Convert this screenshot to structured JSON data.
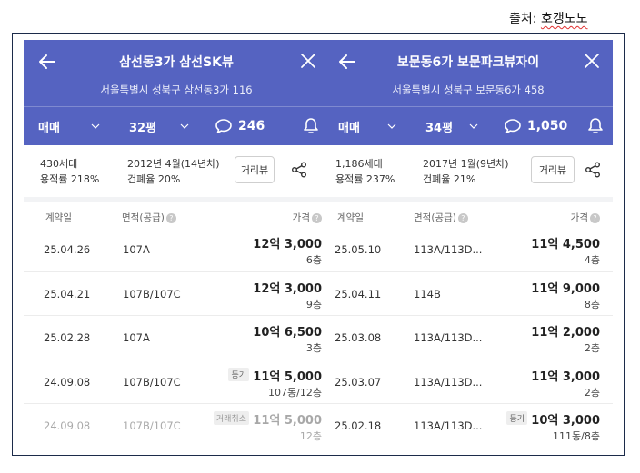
{
  "source": {
    "prefix": "출처: ",
    "name": "호갱노노"
  },
  "panels": [
    {
      "title": "삼선동3가 삼선SK뷰",
      "address": "서울특별시 성북구 삼선동3가 116",
      "tabs": {
        "type": "매매",
        "size": "32평",
        "comments": "246"
      },
      "summary": {
        "households": "430세대",
        "far": "용적률 218%",
        "built": "2012년 4월(14년차)",
        "bcr": "건폐율 20%",
        "distance_button": "거리뷰"
      },
      "columns": {
        "date": "계약일",
        "area": "면적(공급)",
        "price": "가격"
      },
      "rows": [
        {
          "date": "25.04.26",
          "area": "107A",
          "price": "12억 3,000",
          "floor": "6층",
          "badge": ""
        },
        {
          "date": "25.04.21",
          "area": "107B/107C",
          "price": "12억 3,000",
          "floor": "9층",
          "badge": ""
        },
        {
          "date": "25.02.28",
          "area": "107A",
          "price": "10억 6,500",
          "floor": "3층",
          "badge": ""
        },
        {
          "date": "24.09.08",
          "area": "107B/107C",
          "price": "11억 5,000",
          "floor": "107동/12층",
          "badge": "등기"
        },
        {
          "date": "24.09.08",
          "area": "107B/107C",
          "price": "11억 5,000",
          "floor": "12층",
          "badge": "거래취소"
        }
      ]
    },
    {
      "title": "보문동6가 보문파크뷰자이",
      "address": "서울특별시 성북구 보문동6가 458",
      "tabs": {
        "type": "매매",
        "size": "34평",
        "comments": "1,050"
      },
      "summary": {
        "households": "1,186세대",
        "far": "용적률 237%",
        "built": "2017년 1월(9년차)",
        "bcr": "건폐율 21%",
        "distance_button": "거리뷰"
      },
      "columns": {
        "date": "계약일",
        "area": "면적(공급)",
        "price": "가격"
      },
      "rows": [
        {
          "date": "25.05.10",
          "area": "113A/113D...",
          "price": "11억 4,500",
          "floor": "4층",
          "badge": ""
        },
        {
          "date": "25.04.11",
          "area": "114B",
          "price": "11억 9,000",
          "floor": "8층",
          "badge": ""
        },
        {
          "date": "25.03.08",
          "area": "113A/113D...",
          "price": "11억 2,000",
          "floor": "2층",
          "badge": ""
        },
        {
          "date": "25.03.07",
          "area": "113A/113D...",
          "price": "11억 3,000",
          "floor": "2층",
          "badge": ""
        },
        {
          "date": "25.02.18",
          "area": "113A/113D...",
          "price": "10억 3,000",
          "floor": "111동/8층",
          "badge": "등기"
        }
      ]
    }
  ],
  "colors": {
    "header": "#5563c1",
    "frame": "#1c2b4a"
  },
  "icons": [
    "back-arrow-icon",
    "close-icon",
    "chevron-down-icon",
    "comment-icon",
    "bell-icon",
    "share-icon",
    "help-icon"
  ]
}
